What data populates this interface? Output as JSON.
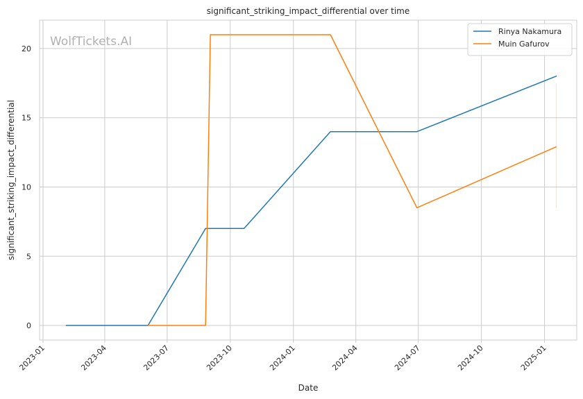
{
  "chart_data": {
    "type": "line",
    "title": "significant_striking_impact_differential over time",
    "xlabel": "Date",
    "ylabel": "significant_striking_impact_differential",
    "watermark": "WolfTickets.AI",
    "x_ticks": [
      "2023-01",
      "2023-04",
      "2023-07",
      "2023-10",
      "2024-01",
      "2024-04",
      "2024-07",
      "2024-10",
      "2025-01"
    ],
    "y_ticks": [
      0,
      5,
      10,
      15,
      20
    ],
    "xlim": [
      "2022-12-27",
      "2025-02-17"
    ],
    "ylim": [
      -1.05,
      22.05
    ],
    "grid": true,
    "legend_position": "top-right",
    "series": [
      {
        "name": "Rinya Nakamura",
        "color": "#1f77b4",
        "points": [
          {
            "x": "2023-02-04",
            "y": 0
          },
          {
            "x": "2023-06-03",
            "y": 0
          },
          {
            "x": "2023-08-26",
            "y": 7
          },
          {
            "x": "2023-10-21",
            "y": 7
          },
          {
            "x": "2024-02-24",
            "y": 14
          },
          {
            "x": "2024-06-29",
            "y": 14
          },
          {
            "x": "2025-01-18",
            "y": 18
          }
        ]
      },
      {
        "name": "Muin Gafurov",
        "color": "#ff7f0e",
        "points": [
          {
            "x": "2023-06-03",
            "y": 0
          },
          {
            "x": "2023-08-26",
            "y": 0
          },
          {
            "x": "2023-09-02",
            "y": 21
          },
          {
            "x": "2024-02-24",
            "y": 21
          },
          {
            "x": "2024-06-29",
            "y": 8.5
          },
          {
            "x": "2025-01-18",
            "y": 12.9
          }
        ]
      }
    ],
    "annotations": [
      {
        "type": "faint-vertical-line",
        "color": "#ff7f0e",
        "x": "2025-01-18",
        "y_from": 8.5,
        "y_to": 17.5
      }
    ]
  }
}
